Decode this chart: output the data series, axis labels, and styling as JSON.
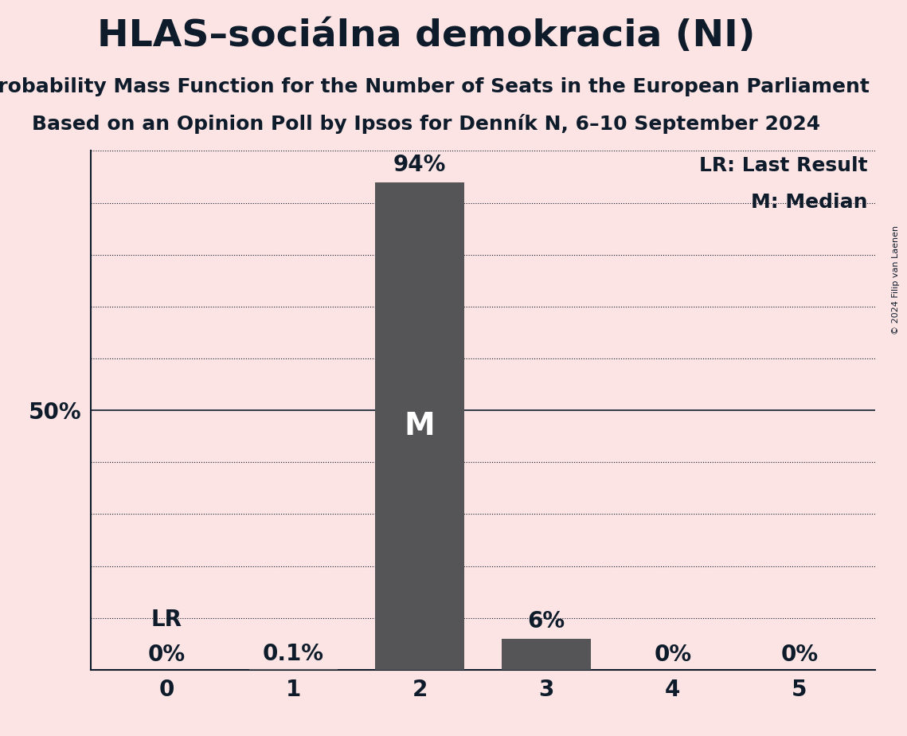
{
  "title": "HLAS–sociálna demokracia (NI)",
  "subtitle1": "Probability Mass Function for the Number of Seats in the European Parliament",
  "subtitle2": "Based on an Opinion Poll by Ipsos for Denník N, 6–10 September 2024",
  "copyright": "© 2024 Filip van Laenen",
  "categories": [
    0,
    1,
    2,
    3,
    4,
    5
  ],
  "values": [
    0.0,
    0.001,
    0.94,
    0.06,
    0.0,
    0.0
  ],
  "bar_labels": [
    "0%",
    "0.1%",
    "94%",
    "6%",
    "0%",
    "0%"
  ],
  "bar_color": "#555558",
  "background_color": "#fce4e4",
  "median_bar": 2,
  "lr_bar": 0,
  "ylim": [
    0,
    1.0
  ],
  "yticks": [
    0.0,
    0.1,
    0.2,
    0.3,
    0.4,
    0.5,
    0.6,
    0.7,
    0.8,
    0.9,
    1.0
  ],
  "fifty_label": "50%",
  "legend_lr": "LR: Last Result",
  "legend_m": "M: Median",
  "title_fontsize": 34,
  "subtitle_fontsize": 18,
  "label_fontsize": 18,
  "tick_fontsize": 20,
  "bar_label_fontsize": 20,
  "annotation_fontsize": 20,
  "m_fontsize": 28,
  "lr_fontsize": 20,
  "text_color": "#0d1b2a",
  "copyright_fontsize": 8,
  "bar_width": 0.7
}
